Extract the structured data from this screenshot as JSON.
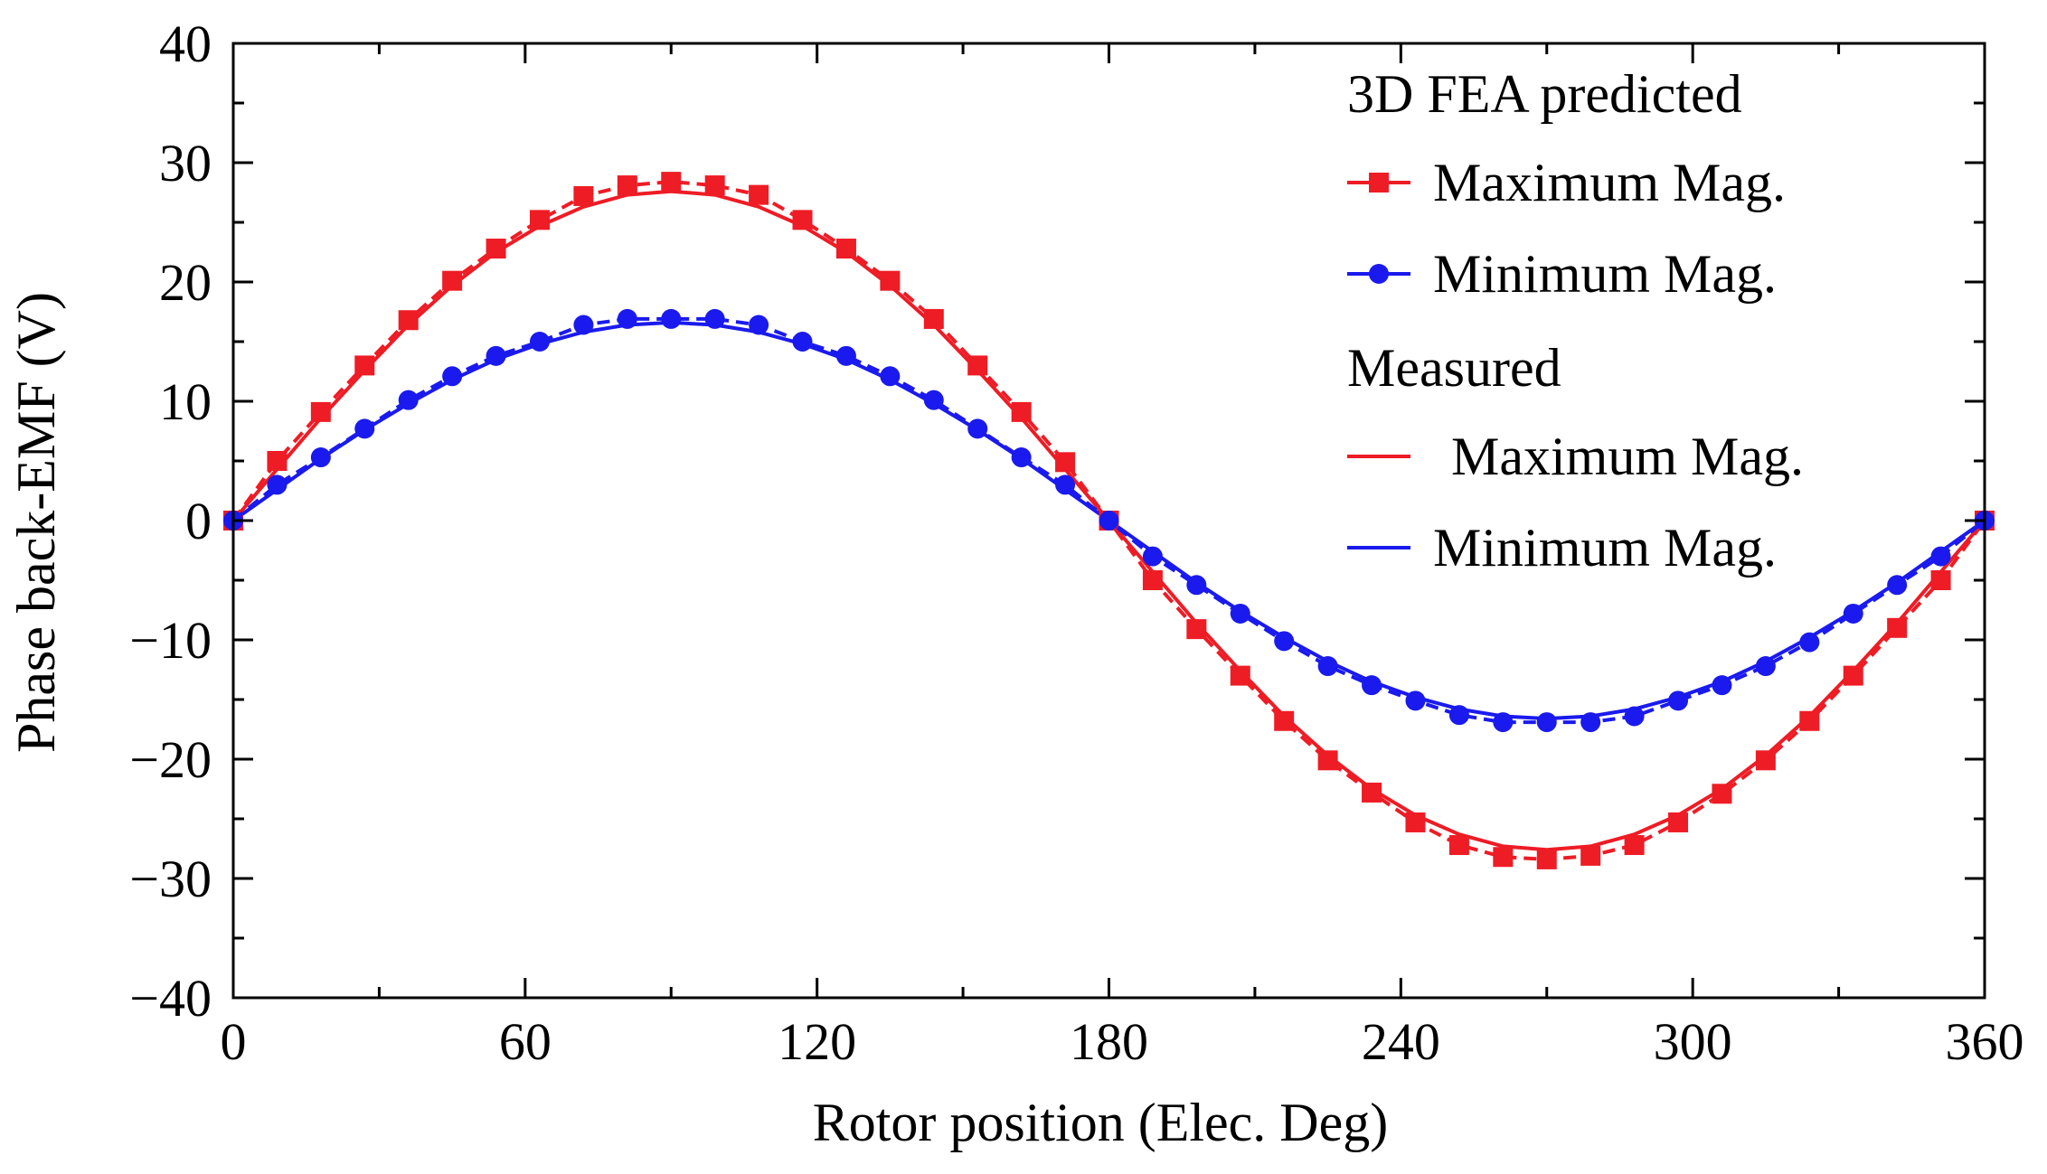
{
  "chart_data": {
    "type": "line",
    "title": "",
    "xlabel": "Rotor position (Elec. Deg)",
    "ylabel": "Phase back-EMF (V)",
    "xlim": [
      0,
      360
    ],
    "ylim": [
      -40,
      40
    ],
    "xticks": [
      0,
      60,
      120,
      180,
      240,
      300,
      360
    ],
    "xtick_labels": [
      "0",
      "60",
      "120",
      "180",
      "240",
      "300",
      "360"
    ],
    "yticks": [
      40,
      30,
      20,
      10,
      0,
      -10,
      -20,
      -30,
      -40
    ],
    "ytick_labels": [
      "40",
      "30",
      "20",
      "10",
      "0",
      "−10",
      "−20",
      "−30",
      "−40"
    ],
    "grid": false,
    "legend_position": "top-right",
    "legend_groups": [
      {
        "heading": "3D FEA predicted",
        "entries": [
          0,
          1
        ]
      },
      {
        "heading": "Measured",
        "entries": [
          2,
          3
        ]
      }
    ],
    "series": [
      {
        "name": "Maximum Mag.",
        "group": "3D FEA predicted",
        "color": "#ee1c25",
        "marker": "square",
        "dashed": true,
        "x": [
          0,
          9,
          18,
          27,
          36,
          45,
          54,
          63,
          72,
          81,
          90,
          99,
          108,
          117,
          126,
          135,
          144,
          153,
          162,
          171,
          180,
          189,
          198,
          207,
          216,
          225,
          234,
          243,
          252,
          261,
          270,
          279,
          288,
          297,
          306,
          315,
          324,
          333,
          342,
          351,
          360
        ],
        "y": [
          0,
          5,
          9.1,
          13,
          16.8,
          20.1,
          22.8,
          25.2,
          27.2,
          28.1,
          28.4,
          28.1,
          27.3,
          25.2,
          22.8,
          20.1,
          16.9,
          13,
          9.1,
          4.9,
          0,
          -5,
          -9.1,
          -13,
          -16.8,
          -20.1,
          -22.8,
          -25.3,
          -27.2,
          -28.2,
          -28.4,
          -28.1,
          -27.2,
          -25.3,
          -22.9,
          -20.1,
          -16.8,
          -13,
          -9,
          -5,
          0
        ]
      },
      {
        "name": "Minimum Mag.",
        "group": "3D FEA predicted",
        "color": "#1a1aee",
        "marker": "circle",
        "dashed": true,
        "x": [
          0,
          9,
          18,
          27,
          36,
          45,
          54,
          63,
          72,
          81,
          90,
          99,
          108,
          117,
          126,
          135,
          144,
          153,
          162,
          171,
          180,
          189,
          198,
          207,
          216,
          225,
          234,
          243,
          252,
          261,
          270,
          279,
          288,
          297,
          306,
          315,
          324,
          333,
          342,
          351,
          360
        ],
        "y": [
          0,
          3,
          5.3,
          7.7,
          10.1,
          12.1,
          13.8,
          15,
          16.4,
          16.9,
          16.9,
          16.9,
          16.4,
          15,
          13.8,
          12.1,
          10.1,
          7.7,
          5.3,
          3,
          0,
          -3,
          -5.4,
          -7.8,
          -10.1,
          -12.2,
          -13.8,
          -15.1,
          -16.3,
          -16.9,
          -16.9,
          -16.9,
          -16.4,
          -15.1,
          -13.8,
          -12.2,
          -10.2,
          -7.8,
          -5.4,
          -3,
          0
        ]
      },
      {
        "name": "Maximum Mag.",
        "group": "Measured",
        "color": "#ee1c25",
        "marker": "none",
        "dashed": false,
        "x": [
          0,
          9,
          18,
          27,
          36,
          45,
          54,
          63,
          72,
          81,
          90,
          99,
          108,
          117,
          126,
          135,
          144,
          153,
          162,
          171,
          180,
          189,
          198,
          207,
          216,
          225,
          234,
          243,
          252,
          261,
          270,
          279,
          288,
          297,
          306,
          315,
          324,
          333,
          342,
          351,
          360
        ],
        "y": [
          0,
          4.3,
          8.6,
          12.6,
          16.4,
          19.7,
          22.5,
          24.7,
          26.3,
          27.3,
          27.6,
          27.3,
          26.3,
          24.7,
          22.5,
          19.7,
          16.4,
          12.6,
          8.6,
          4.3,
          0,
          -4.3,
          -8.6,
          -12.6,
          -16.4,
          -19.7,
          -22.5,
          -24.7,
          -26.3,
          -27.3,
          -27.6,
          -27.3,
          -26.3,
          -24.7,
          -22.5,
          -19.7,
          -16.4,
          -12.6,
          -8.6,
          -4.3,
          0
        ]
      },
      {
        "name": "Minimum Mag.",
        "group": "Measured",
        "color": "#1a1aee",
        "marker": "none",
        "dashed": false,
        "x": [
          0,
          9,
          18,
          27,
          36,
          45,
          54,
          63,
          72,
          81,
          90,
          99,
          108,
          117,
          126,
          135,
          144,
          153,
          162,
          171,
          180,
          189,
          198,
          207,
          216,
          225,
          234,
          243,
          252,
          261,
          270,
          279,
          288,
          297,
          306,
          315,
          324,
          333,
          342,
          351,
          360
        ],
        "y": [
          0,
          2.6,
          5.2,
          7.6,
          9.8,
          11.8,
          13.5,
          14.8,
          15.8,
          16.4,
          16.6,
          16.4,
          15.8,
          14.8,
          13.5,
          11.8,
          9.8,
          7.6,
          5.2,
          2.6,
          0,
          -2.6,
          -5.2,
          -7.6,
          -9.8,
          -11.8,
          -13.5,
          -14.8,
          -15.8,
          -16.4,
          -16.6,
          -16.4,
          -15.8,
          -14.8,
          -13.5,
          -11.8,
          -9.8,
          -7.6,
          -5.2,
          -2.6,
          0
        ]
      }
    ]
  }
}
